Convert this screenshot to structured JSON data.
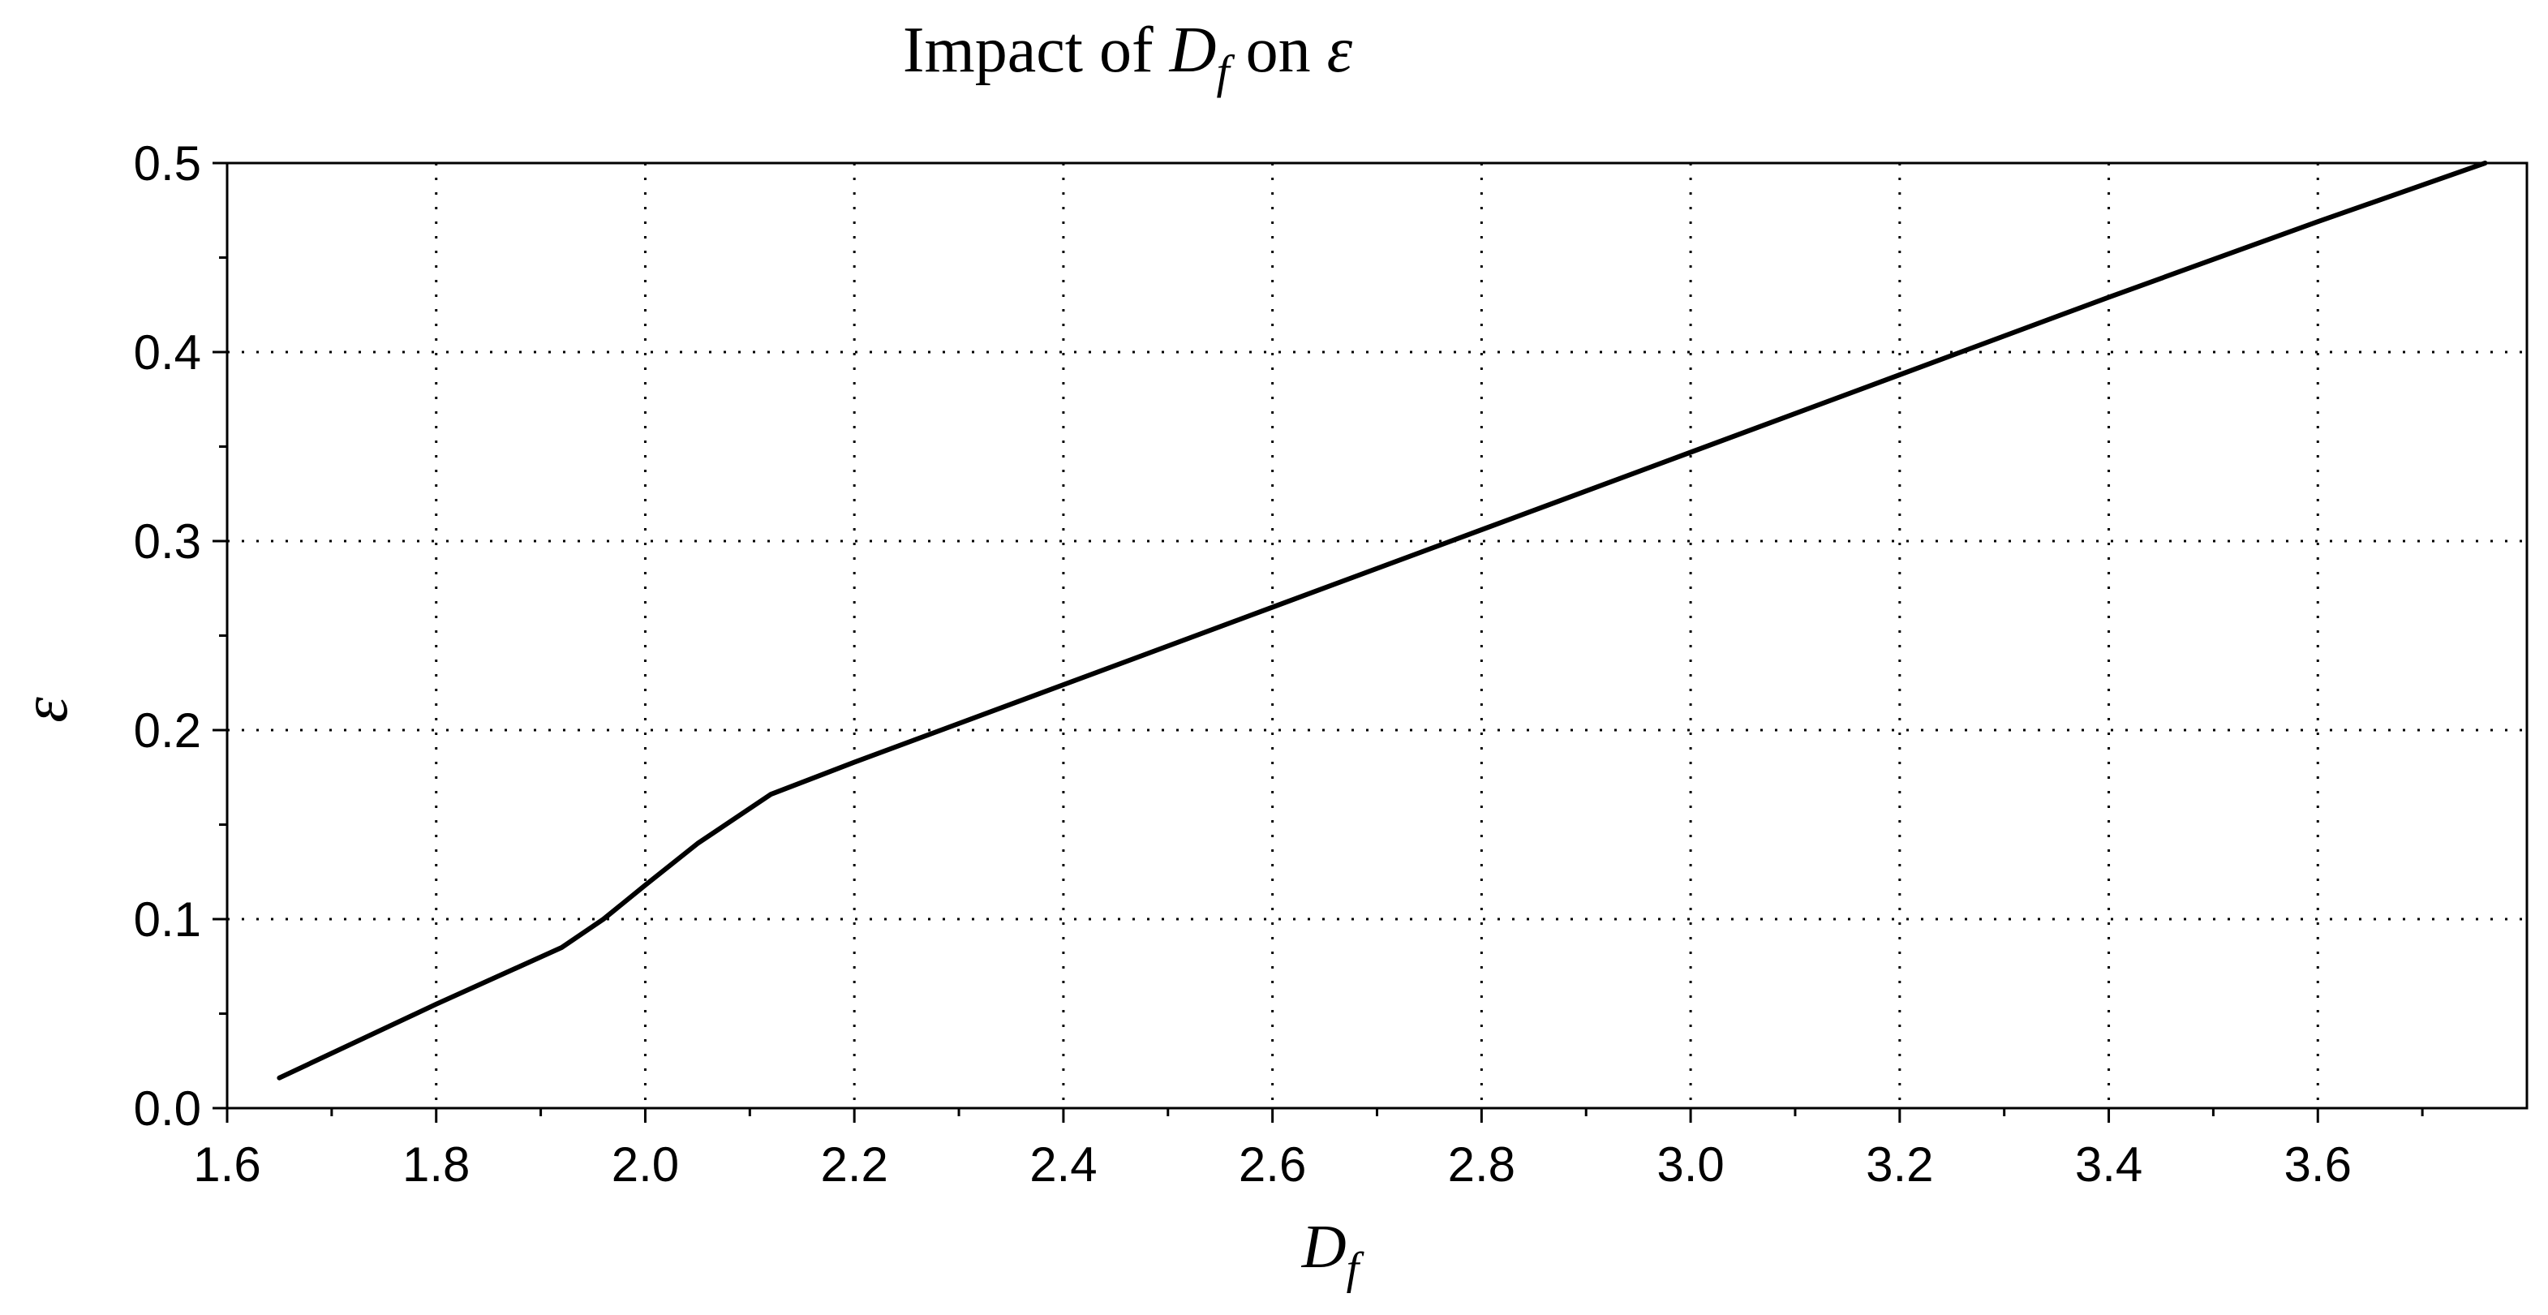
{
  "chart_data": {
    "type": "line",
    "title": {
      "prefix": "Impact of ",
      "variable": "D",
      "variable_subscript": "f",
      "middle": " on ",
      "target": "ε"
    },
    "xlabel": {
      "main": "D",
      "subscript": "f"
    },
    "ylabel": "ε",
    "xlim": [
      1.6,
      3.8
    ],
    "ylim": [
      0.0,
      0.5
    ],
    "x_ticks": [
      "1.6",
      "1.8",
      "2.0",
      "2.2",
      "2.4",
      "2.6",
      "2.8",
      "3.0",
      "3.2",
      "3.4",
      "3.6"
    ],
    "y_ticks": [
      "0.0",
      "0.1",
      "0.2",
      "0.3",
      "0.4",
      "0.5"
    ],
    "grid": true,
    "grid_style": "dotted",
    "series": [
      {
        "color": "#000000",
        "x": [
          1.65,
          1.8,
          1.92,
          1.96,
          2.0,
          2.05,
          2.12,
          2.2,
          2.4,
          2.6,
          2.8,
          3.0,
          3.2,
          3.4,
          3.6,
          3.76
        ],
        "y": [
          0.016,
          0.055,
          0.085,
          0.1,
          0.118,
          0.14,
          0.166,
          0.183,
          0.224,
          0.265,
          0.306,
          0.347,
          0.388,
          0.429,
          0.469,
          0.5
        ]
      }
    ]
  }
}
